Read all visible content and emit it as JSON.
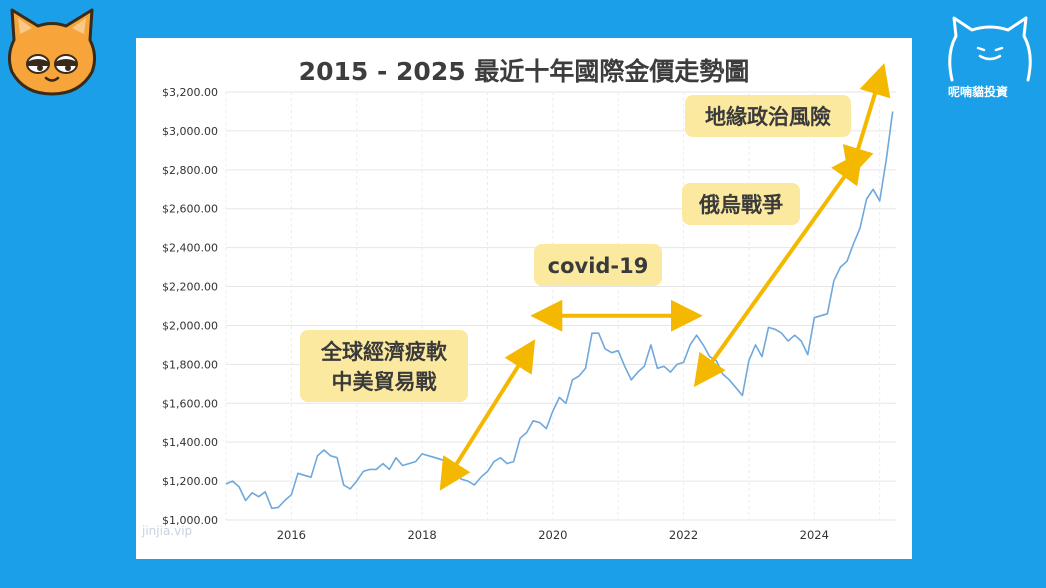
{
  "brand": {
    "name": "呢喃貓投資",
    "watermark": "jinjia.vip"
  },
  "colors": {
    "background": "#1a9fe8",
    "line": "#6fa8dc",
    "arrow": "#f5b800",
    "annotation_bg": "#fbe9a0",
    "cat_orange": "#f7a43a"
  },
  "chart_data": {
    "type": "line",
    "title": "2015 - 2025  最近十年國際金價走勢圖",
    "xlabel": "",
    "ylabel": "",
    "xlim": [
      2015.0,
      2025.25
    ],
    "ylim": [
      1000,
      3200
    ],
    "x_ticks": [
      {
        "value": 2016,
        "label": "2016"
      },
      {
        "value": 2018,
        "label": "2018"
      },
      {
        "value": 2020,
        "label": "2020"
      },
      {
        "value": 2022,
        "label": "2022"
      },
      {
        "value": 2024,
        "label": "2024"
      }
    ],
    "y_ticks": [
      {
        "value": 1000,
        "label": "$1,000.00"
      },
      {
        "value": 1200,
        "label": "$1,200.00"
      },
      {
        "value": 1400,
        "label": "$1,400.00"
      },
      {
        "value": 1600,
        "label": "$1,600.00"
      },
      {
        "value": 1800,
        "label": "$1,800.00"
      },
      {
        "value": 2000,
        "label": "$2,000.00"
      },
      {
        "value": 2200,
        "label": "$2,200.00"
      },
      {
        "value": 2400,
        "label": "$2,400.00"
      },
      {
        "value": 2600,
        "label": "$2,600.00"
      },
      {
        "value": 2800,
        "label": "$2,800.00"
      },
      {
        "value": 3000,
        "label": "$3,000.00"
      },
      {
        "value": 3200,
        "label": "$3,200.00"
      }
    ],
    "grid": true,
    "series": [
      {
        "x": [
          2015.0,
          2015.1,
          2015.2,
          2015.3,
          2015.4,
          2015.5,
          2015.6,
          2015.7,
          2015.8,
          2015.9,
          2016.0,
          2016.1,
          2016.2,
          2016.3,
          2016.4,
          2016.5,
          2016.6,
          2016.7,
          2016.8,
          2016.9,
          2017.0,
          2017.1,
          2017.2,
          2017.3,
          2017.4,
          2017.5,
          2017.6,
          2017.7,
          2017.8,
          2017.9,
          2018.0,
          2018.1,
          2018.2,
          2018.3,
          2018.4,
          2018.5,
          2018.6,
          2018.7,
          2018.8,
          2018.9,
          2019.0,
          2019.1,
          2019.2,
          2019.3,
          2019.4,
          2019.5,
          2019.6,
          2019.7,
          2019.8,
          2019.9,
          2020.0,
          2020.1,
          2020.2,
          2020.3,
          2020.4,
          2020.5,
          2020.6,
          2020.7,
          2020.8,
          2020.9,
          2021.0,
          2021.1,
          2021.2,
          2021.3,
          2021.4,
          2021.5,
          2021.6,
          2021.7,
          2021.8,
          2021.9,
          2022.0,
          2022.1,
          2022.2,
          2022.3,
          2022.4,
          2022.5,
          2022.6,
          2022.7,
          2022.8,
          2022.9,
          2023.0,
          2023.1,
          2023.2,
          2023.3,
          2023.4,
          2023.5,
          2023.6,
          2023.7,
          2023.8,
          2023.9,
          2024.0,
          2024.1,
          2024.2,
          2024.3,
          2024.4,
          2024.5,
          2024.6,
          2024.7,
          2024.8,
          2024.9,
          2025.0,
          2025.1,
          2025.2
        ],
        "values": [
          1185,
          1200,
          1170,
          1100,
          1140,
          1120,
          1145,
          1060,
          1065,
          1100,
          1130,
          1240,
          1230,
          1220,
          1330,
          1360,
          1330,
          1320,
          1180,
          1160,
          1200,
          1250,
          1260,
          1260,
          1290,
          1260,
          1320,
          1280,
          1290,
          1300,
          1340,
          1330,
          1320,
          1310,
          1290,
          1240,
          1210,
          1200,
          1180,
          1220,
          1250,
          1300,
          1320,
          1290,
          1300,
          1420,
          1450,
          1510,
          1500,
          1470,
          1560,
          1630,
          1600,
          1720,
          1740,
          1780,
          1960,
          1960,
          1880,
          1860,
          1870,
          1790,
          1720,
          1760,
          1790,
          1900,
          1780,
          1790,
          1760,
          1800,
          1810,
          1900,
          1950,
          1900,
          1840,
          1820,
          1750,
          1720,
          1680,
          1640,
          1820,
          1900,
          1840,
          1990,
          1980,
          1960,
          1920,
          1950,
          1920,
          1850,
          2040,
          2050,
          2060,
          2230,
          2300,
          2330,
          2420,
          2500,
          2650,
          2700,
          2640,
          2850,
          3100
        ]
      }
    ],
    "annotations": [
      {
        "text": [
          "全球經濟疲軟",
          "中美貿易戰"
        ],
        "arrow": {
          "from": [
            2018.4,
            1220
          ],
          "to": [
            2019.6,
            1860
          ]
        }
      },
      {
        "text": [
          "covid-19"
        ],
        "arrow": {
          "from": [
            2019.9,
            2050
          ],
          "to": [
            2022.05,
            2050
          ]
        }
      },
      {
        "text": [
          "俄烏戰爭"
        ],
        "arrow": {
          "from": [
            2022.3,
            1750
          ],
          "to": [
            2024.6,
            2830
          ]
        }
      },
      {
        "text": [
          "地緣政治風險"
        ],
        "arrow": {
          "from": [
            2024.6,
            2830
          ],
          "to": [
            2025.0,
            3270
          ]
        }
      }
    ]
  }
}
